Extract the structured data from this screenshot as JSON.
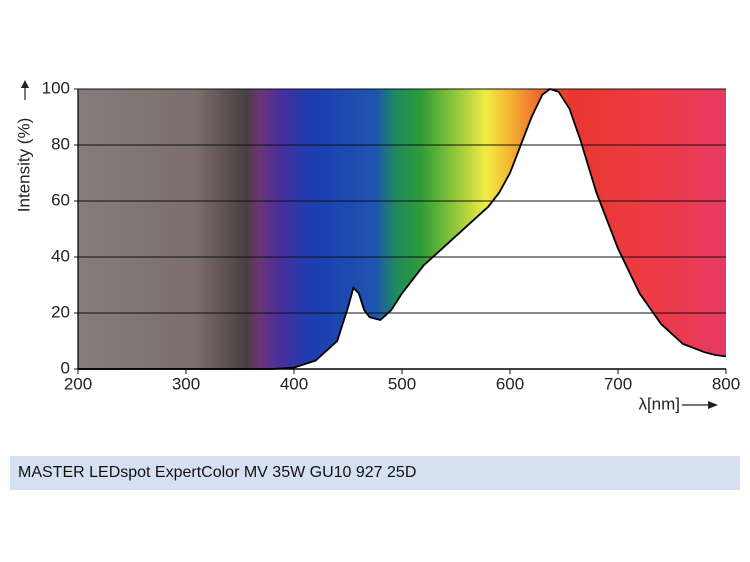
{
  "chart_data": {
    "type": "area",
    "ylabel": "Intensity (%)",
    "xlabel": "λ[nm]",
    "x": [
      200,
      300,
      370,
      380,
      400,
      420,
      440,
      450,
      455,
      460,
      465,
      470,
      480,
      490,
      500,
      520,
      540,
      560,
      580,
      590,
      600,
      610,
      620,
      630,
      637,
      645,
      655,
      665,
      680,
      700,
      720,
      740,
      760,
      780,
      790,
      800
    ],
    "values": [
      0,
      0,
      0,
      0,
      0.5,
      3,
      10,
      22,
      29,
      27,
      21,
      18.5,
      17.5,
      21,
      27,
      37,
      44,
      51,
      58,
      63,
      70,
      80,
      90,
      98,
      100,
      99,
      93,
      82,
      63,
      43,
      27,
      16,
      9,
      6,
      5,
      4.5
    ],
    "xlim": [
      200,
      800
    ],
    "ylim": [
      0,
      100
    ],
    "xticks": [
      200,
      300,
      400,
      500,
      600,
      700,
      800
    ],
    "yticks": [
      0,
      20,
      40,
      60,
      80,
      100
    ],
    "grid": true
  },
  "caption": "MASTER LEDspot ExpertColor MV 35W GU10 927 25D"
}
